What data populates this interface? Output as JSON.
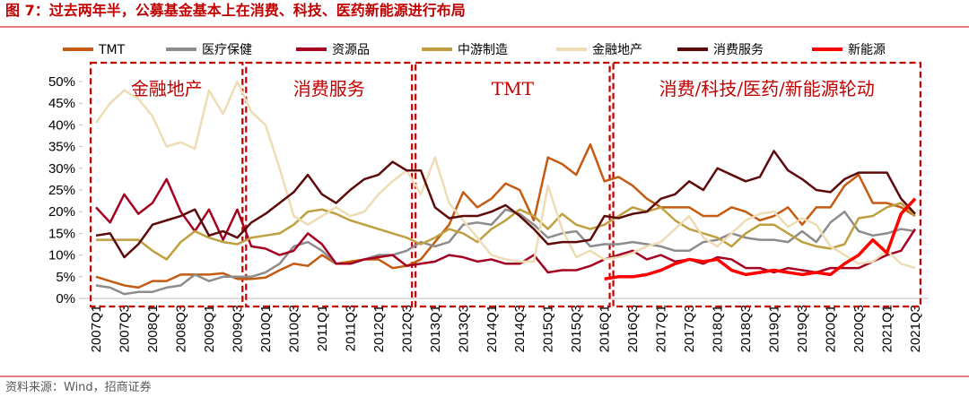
{
  "chart_data": {
    "type": "line",
    "title": "图 7：过去两年半，公募基金基本上在消费、科技、医药新能源进行布局",
    "source": "资料来源：Wind，招商证券",
    "annotations": [
      "金融地产",
      "消费服务",
      "TMT",
      "消费/科技/医药/新能源轮动"
    ],
    "categories": [
      "2007Q1",
      null,
      "2007Q3",
      null,
      "2008Q1",
      null,
      "2008Q3",
      null,
      "2009Q1",
      null,
      "2009Q3",
      null,
      "2010Q1",
      null,
      "2010Q3",
      null,
      "2011Q1",
      null,
      "2011Q3",
      null,
      "2012Q1",
      null,
      "2012Q3",
      null,
      "2013Q1",
      null,
      "2013Q3",
      null,
      "2014Q1",
      null,
      "2014Q3",
      null,
      "2015Q1",
      null,
      "2015Q3",
      null,
      "2016Q1",
      null,
      "2016Q3",
      null,
      "2017Q1",
      null,
      "2017Q3",
      null,
      "2018Q1",
      null,
      "2018Q3",
      null,
      "2019Q1",
      null,
      "2019Q3",
      null,
      "2020Q1",
      null,
      "2020Q3",
      null,
      "2021Q1",
      null,
      "2021Q3"
    ],
    "ylim": [
      0,
      50
    ],
    "yticks": [
      {
        "value": 0,
        "label": "0%"
      },
      {
        "value": 5,
        "label": "5%"
      },
      {
        "value": 10,
        "label": "10%"
      },
      {
        "value": 15,
        "label": "15%"
      },
      {
        "value": 20,
        "label": "20%"
      },
      {
        "value": 25,
        "label": "25%"
      },
      {
        "value": 30,
        "label": "30%"
      },
      {
        "value": 35,
        "label": "35%"
      },
      {
        "value": 40,
        "label": "40%"
      },
      {
        "value": 45,
        "label": "45%"
      },
      {
        "value": 50,
        "label": "50%"
      }
    ],
    "grid": false,
    "legend": "top",
    "series": [
      {
        "name": "TMT",
        "color": "#c55a11",
        "values": [
          5,
          4,
          3,
          2.5,
          4,
          4,
          5.5,
          5.5,
          5.5,
          5.8,
          4.5,
          4.5,
          4.8,
          6.5,
          8,
          7.5,
          10,
          8,
          8.5,
          9,
          9,
          7,
          7.5,
          9,
          13,
          17,
          24.5,
          21,
          23,
          26.5,
          25,
          18,
          32.5,
          31,
          28.5,
          35.5,
          27,
          28,
          26,
          23,
          21,
          21,
          21,
          19,
          19,
          21,
          20,
          18,
          19,
          21,
          17,
          21,
          21,
          26,
          28.5,
          22,
          22,
          21,
          19
        ]
      },
      {
        "name": "医疗保健",
        "color": "#8c8c8c",
        "values": [
          3,
          2.5,
          1,
          1.5,
          1.5,
          2.5,
          3,
          5.5,
          4,
          5,
          5,
          5,
          6,
          8,
          12,
          13,
          11,
          8,
          8,
          9,
          10,
          10,
          11,
          13,
          12,
          13,
          17,
          17.5,
          17,
          20.5,
          19.5,
          17,
          14,
          15,
          15.5,
          12,
          12.5,
          12.5,
          13,
          12.5,
          12,
          11,
          11,
          13,
          13.5,
          15,
          14,
          13.5,
          13.5,
          13,
          15.5,
          13,
          17.5,
          20,
          15.5,
          14.5,
          15,
          16,
          15.5
        ]
      },
      {
        "name": "资源品",
        "color": "#a50021",
        "values": [
          21,
          17.5,
          24,
          19.5,
          22,
          27.5,
          20,
          15.5,
          20.5,
          13.5,
          20.5,
          12,
          11.5,
          10,
          11,
          15,
          12.5,
          8,
          8,
          9,
          9.5,
          10,
          7.5,
          8,
          8.5,
          10,
          9.5,
          8.5,
          9,
          8,
          8,
          10,
          6,
          6.5,
          6.5,
          7.5,
          9,
          10,
          11,
          9,
          10,
          8.5,
          9,
          8,
          9.5,
          9,
          7,
          7,
          6,
          7,
          6.5,
          6,
          7,
          7,
          7,
          8.5,
          10,
          11,
          16
        ]
      },
      {
        "name": "中游制造",
        "color": "#bf9f3f",
        "values": [
          13.5,
          13.5,
          13.5,
          13.5,
          11,
          9,
          13,
          15.5,
          14,
          13,
          12.5,
          14,
          14.5,
          15,
          17,
          20,
          20.5,
          19.5,
          18,
          17,
          16,
          15,
          14,
          12.5,
          14,
          16,
          15,
          13,
          16,
          18,
          20.5,
          19,
          16,
          19.5,
          17,
          16,
          17,
          19,
          21,
          20,
          21,
          18,
          16,
          15,
          14,
          12,
          15,
          17,
          17,
          15,
          13,
          12,
          11.5,
          12.5,
          18.5,
          19,
          21,
          22,
          19
        ]
      },
      {
        "name": "金融地产",
        "color": "#eedcb4",
        "values": [
          40.5,
          45,
          48,
          46,
          42,
          35,
          36,
          34.5,
          48,
          42.5,
          50,
          43,
          40,
          30,
          19,
          17,
          19,
          21,
          19,
          20,
          24,
          27,
          29.5,
          24,
          32.5,
          22,
          18,
          14,
          10,
          9,
          8.5,
          8.5,
          26,
          16,
          9.5,
          11,
          9,
          9.5,
          10.5,
          12,
          13,
          16,
          19,
          14,
          12,
          15,
          18,
          19.5,
          20,
          16.5,
          18.5,
          17,
          12,
          10,
          8,
          8.5,
          11,
          8,
          7
        ]
      },
      {
        "name": "消费服务",
        "color": "#5c0a0a",
        "values": [
          14.5,
          15,
          9.5,
          12.5,
          17,
          18,
          19,
          20.5,
          14.5,
          15.5,
          14,
          17.5,
          19.5,
          22,
          24.5,
          28.5,
          24,
          22,
          25,
          27.5,
          28.5,
          31.5,
          29.5,
          29.5,
          21,
          18.5,
          19,
          19,
          20,
          21.5,
          19,
          16,
          12.5,
          13,
          13,
          13.5,
          19,
          18.5,
          19.5,
          20,
          23,
          24,
          27,
          25,
          30,
          28.5,
          27,
          28,
          34,
          29.5,
          27.5,
          25,
          24.5,
          27.5,
          29,
          29,
          29,
          23,
          19.5
        ]
      },
      {
        "name": "新能源",
        "color": "#ff0000",
        "values": [
          null,
          null,
          null,
          null,
          null,
          null,
          null,
          null,
          null,
          null,
          null,
          null,
          null,
          null,
          null,
          null,
          null,
          null,
          null,
          null,
          null,
          null,
          null,
          null,
          null,
          null,
          null,
          null,
          null,
          null,
          null,
          null,
          null,
          null,
          null,
          null,
          4.5,
          5,
          5,
          5.5,
          6.5,
          8,
          9,
          8.5,
          9,
          6.5,
          5.5,
          6,
          6.5,
          6,
          5.5,
          6,
          5.5,
          8,
          10,
          13.5,
          10.5,
          19.5,
          23
        ]
      }
    ]
  }
}
